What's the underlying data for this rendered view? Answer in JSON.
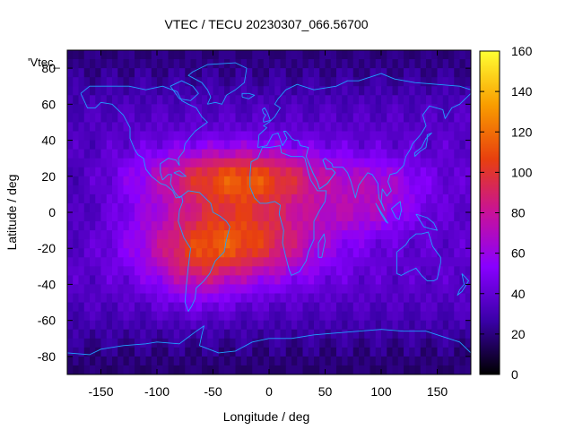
{
  "chart_data": {
    "type": "heatmap",
    "title": "VTEC / TECU 20230307_066.56700",
    "xlabel": "Longitude / deg",
    "ylabel": "Latitude / deg",
    "legend_entry": "'Vtec_",
    "xlim": [
      -180,
      180
    ],
    "ylim": [
      -90,
      90
    ],
    "x_ticks": [
      -150,
      -100,
      -50,
      0,
      50,
      100,
      150
    ],
    "y_ticks": [
      -80,
      -60,
      -40,
      -20,
      0,
      20,
      40,
      60,
      80
    ],
    "colorbar": {
      "range": [
        0,
        160
      ],
      "ticks": [
        0,
        20,
        40,
        60,
        80,
        100,
        120,
        140,
        160
      ],
      "palette": [
        "#000000",
        "#3a00a8",
        "#8800ff",
        "#c8119a",
        "#e8400e",
        "#f99d00",
        "#ffff33"
      ]
    },
    "grid_resolution_deg": 5,
    "ionosphere_features": {
      "background_tecu": 38,
      "equatorial_crest_peak_tecu": 130,
      "crest_center_longitude": -25,
      "crest_latitudes": [
        20,
        -20
      ],
      "polar_low_tecu": 15
    },
    "coastline_color": "#1fa0ff"
  }
}
